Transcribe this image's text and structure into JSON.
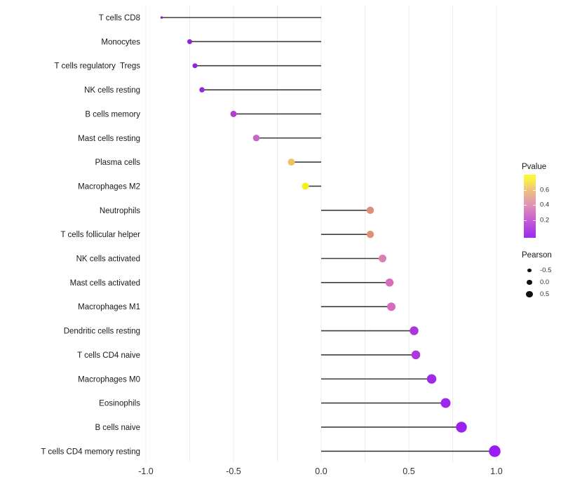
{
  "chart_data": {
    "type": "lollipop",
    "orientation": "horizontal",
    "title": "",
    "xlabel": "",
    "ylabel": "",
    "x_ticks": [
      "-1.0",
      "-0.5",
      "0.0",
      "0.5",
      "1.0"
    ],
    "x_tick_values": [
      -1.0,
      -0.5,
      0.0,
      0.5,
      1.0
    ],
    "x_range": [
      -1.0,
      1.0
    ],
    "grid_step": 0.25,
    "grid_on": true,
    "categories": [
      "T cells CD8",
      "Monocytes",
      "T cells regulatory  Tregs",
      "NK cells resting",
      "B cells memory",
      "Mast cells resting",
      "Plasma cells",
      "Macrophages M2",
      "Neutrophils",
      "T cells follicular helper",
      "NK cells activated",
      "Mast cells activated",
      "Macrophages M1",
      "Dendritic cells resting",
      "T cells CD4 naive",
      "Macrophages M0",
      "Eosinophils",
      "B cells naive",
      "T cells CD4 memory resting"
    ],
    "series": [
      {
        "name": "Pearson correlation",
        "values": [
          -0.91,
          -0.75,
          -0.72,
          -0.68,
          -0.5,
          -0.37,
          -0.17,
          -0.09,
          0.28,
          0.28,
          0.35,
          0.39,
          0.4,
          0.53,
          0.54,
          0.63,
          0.71,
          0.8,
          0.99
        ]
      }
    ],
    "point_colors": [
      "#8021C8",
      "#8C25D8",
      "#8F26DA",
      "#9329DC",
      "#B23ECE",
      "#C767C2",
      "#EFC163",
      "#F6F01A",
      "#E18F7D",
      "#E18F7D",
      "#DA80B2",
      "#D76CBC",
      "#D76CBC",
      "#AC36DE",
      "#AB37DE",
      "#A02BE6",
      "#9D26EA",
      "#9B21EE",
      "#9A1CF2"
    ],
    "point_diameters": [
      3.5,
      7,
      7,
      7.5,
      9,
      9.5,
      10,
      10,
      10.5,
      10.5,
      11,
      11.5,
      12,
      12.5,
      12.5,
      13.5,
      14,
      15.5,
      16.5
    ],
    "stem_color": "#3D3D3D",
    "gridline_color": "#ECECEC",
    "legend_pvalue": {
      "title": "Pvalue",
      "ticks": [
        "0.6",
        "0.4",
        "0.2"
      ],
      "gradient_top_color": "#FDF838",
      "gradient_bottom_color": "#9B2BF0"
    },
    "legend_pearson": {
      "title": "Pearson",
      "items": [
        {
          "label": "-0.5",
          "diameter": 5.5
        },
        {
          "label": "0.0",
          "diameter": 7.5
        },
        {
          "label": "0.5",
          "diameter": 9.5
        }
      ]
    }
  }
}
